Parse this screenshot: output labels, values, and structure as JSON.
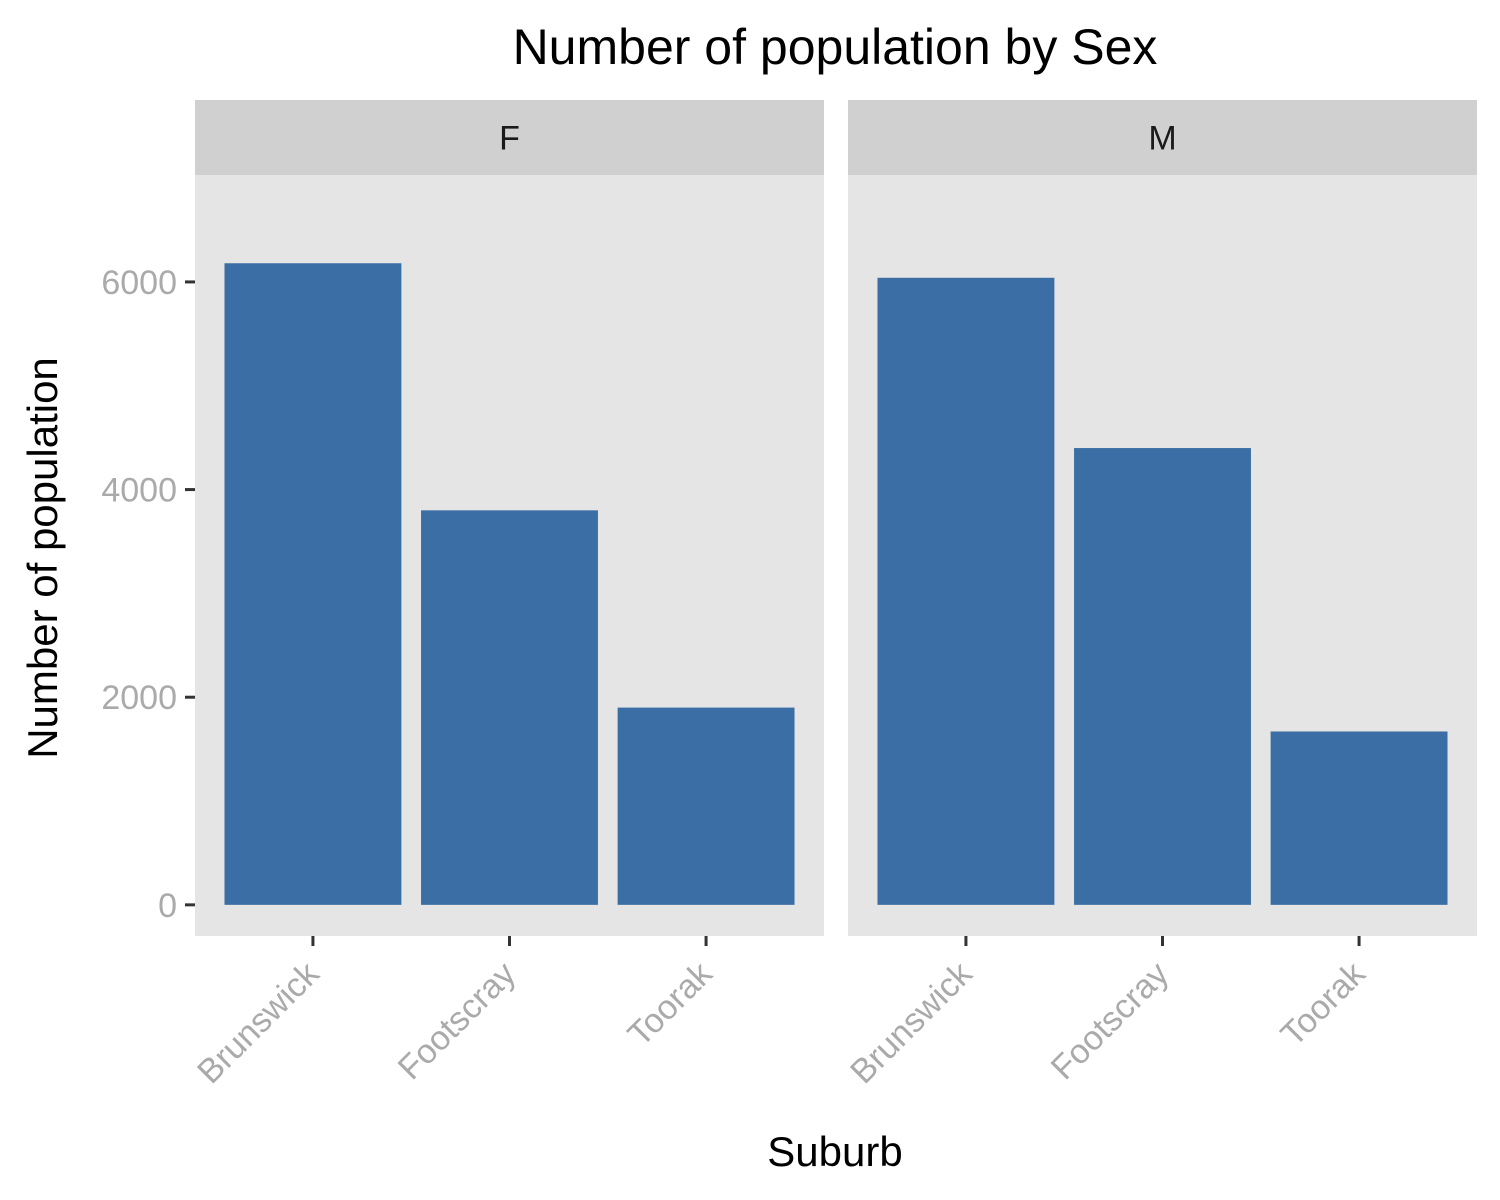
{
  "chart_data": {
    "type": "bar",
    "title": "Number of population by Sex",
    "xlabel": "Suburb",
    "ylabel": "Number of population",
    "categories": [
      "Brunswick",
      "Footscray",
      "Toorak"
    ],
    "facets": [
      {
        "name": "F",
        "values": [
          6180,
          3800,
          1900
        ]
      },
      {
        "name": "M",
        "values": [
          6040,
          4400,
          1670
        ]
      }
    ],
    "ylim": [
      -300,
      7030
    ],
    "yticks": [
      0,
      2000,
      4000,
      6000
    ],
    "ytick_labels": [
      "0",
      "2000",
      "4000",
      "6000"
    ],
    "grid": false,
    "legend": "none"
  },
  "colors": {
    "bar": "#3b6ea5",
    "panel_bg": "#e5e5e5",
    "strip_bg": "#d0d0d0"
  }
}
